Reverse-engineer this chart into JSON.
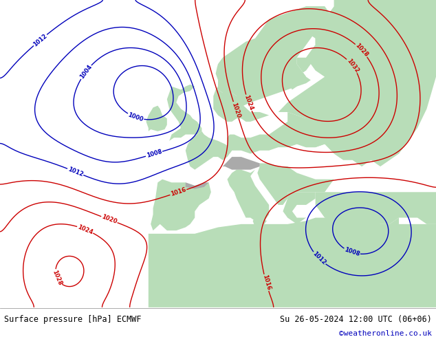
{
  "title_left": "Surface pressure [hPa] ECMWF",
  "title_right": "Su 26-05-2024 12:00 UTC (06+06)",
  "title_right2": "©weatheronline.co.uk",
  "bg_ocean": "#d8d8d8",
  "bg_land_green": "#b8ddb8",
  "bg_mountains_gray": "#aaaaaa",
  "contour_color_black": "#000000",
  "contour_color_blue": "#0000bb",
  "contour_color_red": "#cc0000",
  "label_fontsize": 6,
  "title_fontsize": 8.5,
  "figsize": [
    6.34,
    4.9
  ],
  "dpi": 100,
  "lon_min": -42,
  "lon_max": 52,
  "lat_min": 24,
  "lat_max": 72
}
